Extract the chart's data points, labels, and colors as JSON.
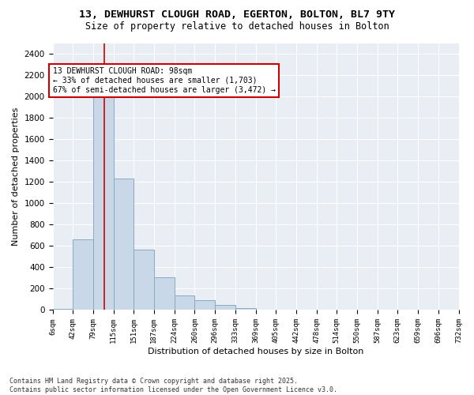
{
  "title1": "13, DEWHURST CLOUGH ROAD, EGERTON, BOLTON, BL7 9TY",
  "title2": "Size of property relative to detached houses in Bolton",
  "xlabel": "Distribution of detached houses by size in Bolton",
  "ylabel": "Number of detached properties",
  "bar_edges": [
    6,
    42,
    79,
    115,
    151,
    187,
    224,
    260,
    296,
    333,
    369,
    405,
    442,
    478,
    514,
    550,
    587,
    623,
    659,
    696,
    732
  ],
  "bar_heights": [
    10,
    660,
    2050,
    1230,
    570,
    310,
    140,
    90,
    50,
    20,
    5,
    5,
    5,
    5,
    5,
    5,
    5,
    5,
    5,
    5
  ],
  "bar_color": "#c8d8e8",
  "bar_edge_color": "#8aaabf",
  "bar_linewidth": 0.7,
  "vline_x": 98,
  "vline_color": "#cc0000",
  "vline_linewidth": 1.2,
  "annotation_text": "13 DEWHURST CLOUGH ROAD: 98sqm\n← 33% of detached houses are smaller (1,703)\n67% of semi-detached houses are larger (3,472) →",
  "annotation_box_color": "#cc0000",
  "ylim_max": 2500,
  "yticks": [
    0,
    200,
    400,
    600,
    800,
    1000,
    1200,
    1400,
    1600,
    1800,
    2000,
    2200,
    2400
  ],
  "bg_color": "#e8eef4",
  "grid_color": "#ffffff",
  "footer_text": "Contains HM Land Registry data © Crown copyright and database right 2025.\nContains public sector information licensed under the Open Government Licence v3.0.",
  "title1_fontsize": 9.5,
  "title2_fontsize": 8.5,
  "annotation_fontsize": 7,
  "tick_fontsize": 6.5,
  "ylabel_fontsize": 8,
  "xlabel_fontsize": 8,
  "footer_fontsize": 6
}
